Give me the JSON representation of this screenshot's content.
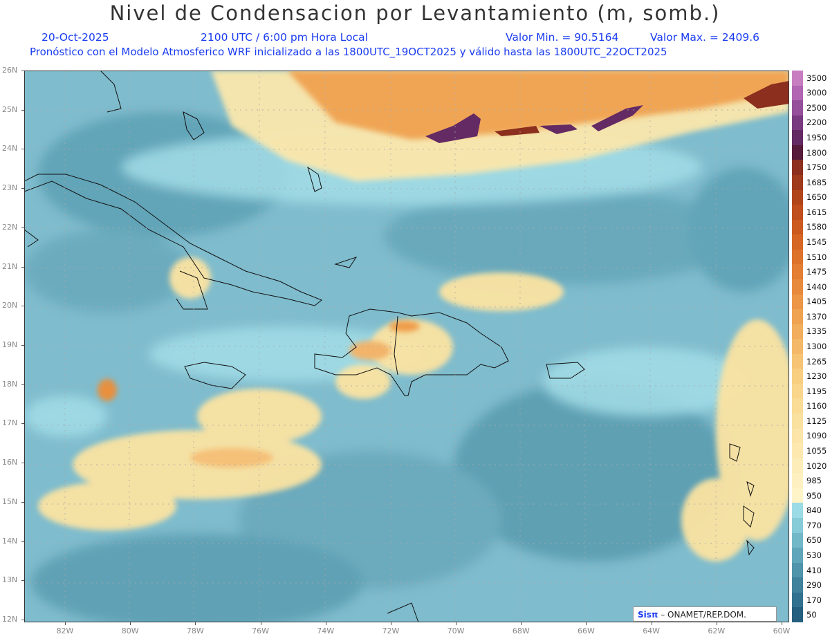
{
  "header": {
    "title": "Nivel de Condensacion por Levantamiento (m, somb.)",
    "date": "20-Oct-2025",
    "time": "2100 UTC / 6:00 pm Hora Local",
    "vmin": "Valor Min. = 90.5164",
    "vmax": "Valor Max. = 2409.6",
    "model_line": "Pronóstico con el Modelo Atmosferico WRF inicializado a las 1800UTC_19OCT2025 y válido hasta las  1800UTC_22OCT2025"
  },
  "lat_labels": [
    "26N",
    "25N",
    "24N",
    "23N",
    "22N",
    "21N",
    "20N",
    "19N",
    "18N",
    "17N",
    "16N",
    "15N",
    "14N",
    "13N",
    "12N"
  ],
  "lon_labels": [
    "82W",
    "80W",
    "78W",
    "76W",
    "74W",
    "72W",
    "70W",
    "68W",
    "66W",
    "64W",
    "62W",
    "60W"
  ],
  "colorbar": {
    "labels": [
      "3500",
      "3000",
      "2500",
      "2200",
      "1950",
      "1800",
      "1750",
      "1685",
      "1650",
      "1615",
      "1580",
      "1545",
      "1510",
      "1475",
      "1440",
      "1405",
      "1370",
      "1335",
      "1300",
      "1265",
      "1230",
      "1195",
      "1160",
      "1125",
      "1090",
      "1055",
      "1020",
      "985",
      "950",
      "840",
      "770",
      "650",
      "530",
      "410",
      "290",
      "170",
      "50"
    ],
    "colors": [
      "#c77ec0",
      "#b165b2",
      "#954f9b",
      "#7a3a80",
      "#632a63",
      "#561a3a",
      "#8c2f1f",
      "#a03a1c",
      "#b2441a",
      "#c04e1c",
      "#cc5a1f",
      "#d66624",
      "#dd722b",
      "#e37e33",
      "#e88a3c",
      "#ec9646",
      "#efa250",
      "#f2ae5c",
      "#f4b968",
      "#f6c474",
      "#f8ce80",
      "#f9d68b",
      "#fadc96",
      "#fbe1a0",
      "#fce5a8",
      "#fde9b0",
      "#fdedb8",
      "#fef0c0",
      "#fff3c8",
      "#9bdbe6",
      "#86cbd8",
      "#72b8c9",
      "#60a6ba",
      "#4f94ab",
      "#40829c",
      "#31718d",
      "#255f7e"
    ]
  },
  "credit": {
    "brand": "Sisπ",
    "text": "–  ONAMET/REP.DOM."
  }
}
